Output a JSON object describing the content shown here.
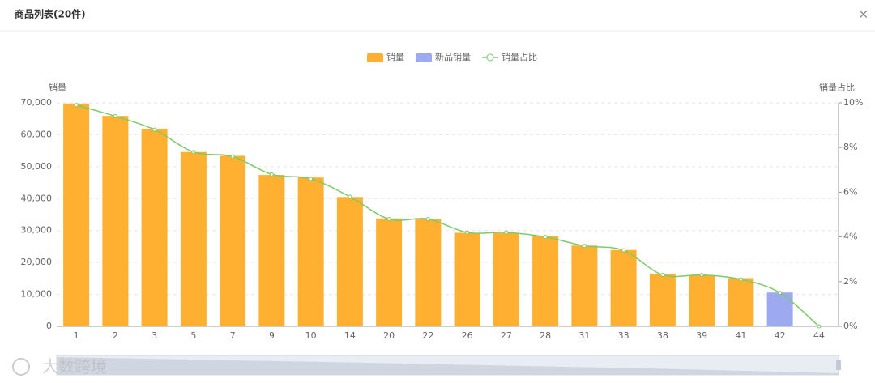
{
  "header": {
    "title": "商品列表(20件)",
    "close": "×"
  },
  "watermark": "大数跨境",
  "chart_data": {
    "type": "bar",
    "categories": [
      "1",
      "2",
      "3",
      "5",
      "7",
      "9",
      "10",
      "14",
      "20",
      "22",
      "26",
      "27",
      "28",
      "31",
      "33",
      "38",
      "39",
      "41",
      "42",
      "44"
    ],
    "series": [
      {
        "name": "销量",
        "color": "#ffb030",
        "values": [
          69800,
          65900,
          61900,
          54600,
          53400,
          47400,
          46600,
          40500,
          33800,
          33600,
          29300,
          29200,
          28200,
          25300,
          23900,
          16500,
          16000,
          15100,
          null,
          0
        ]
      },
      {
        "name": "新品销量",
        "color": "#9eaaf0",
        "values": [
          null,
          null,
          null,
          null,
          null,
          null,
          null,
          null,
          null,
          null,
          null,
          null,
          null,
          null,
          null,
          null,
          null,
          null,
          10600,
          null
        ]
      },
      {
        "name": "销量占比",
        "color": "#7ccb67",
        "type": "line",
        "axis": "y2",
        "values": [
          9.9,
          9.4,
          8.8,
          7.8,
          7.6,
          6.8,
          6.6,
          5.8,
          4.8,
          4.8,
          4.2,
          4.2,
          4.0,
          3.6,
          3.4,
          2.3,
          2.3,
          2.1,
          1.5,
          0
        ]
      }
    ],
    "y_label": "销量",
    "y2_label": "销量占比",
    "ylim": [
      0,
      70000
    ],
    "yticks": [
      0,
      {
        "value": 10000,
        "label": "10,000"
      },
      {
        "value": 20000,
        "label": "20,000"
      },
      {
        "value": 30000,
        "label": "30,000"
      },
      {
        "value": 40000,
        "label": "40,000"
      },
      {
        "value": 50000,
        "label": "50,000"
      },
      {
        "value": 60000,
        "label": "60,000"
      },
      {
        "value": 70000,
        "label": "70,000"
      }
    ],
    "y2lim": [
      0,
      10
    ],
    "y2ticks": [
      {
        "value": 0,
        "label": "0%"
      },
      {
        "value": 2,
        "label": "2%"
      },
      {
        "value": 4,
        "label": "4%"
      },
      {
        "value": 6,
        "label": "6%"
      },
      {
        "value": 8,
        "label": "8%"
      },
      {
        "value": 10,
        "label": "10%"
      }
    ],
    "grid": true
  }
}
